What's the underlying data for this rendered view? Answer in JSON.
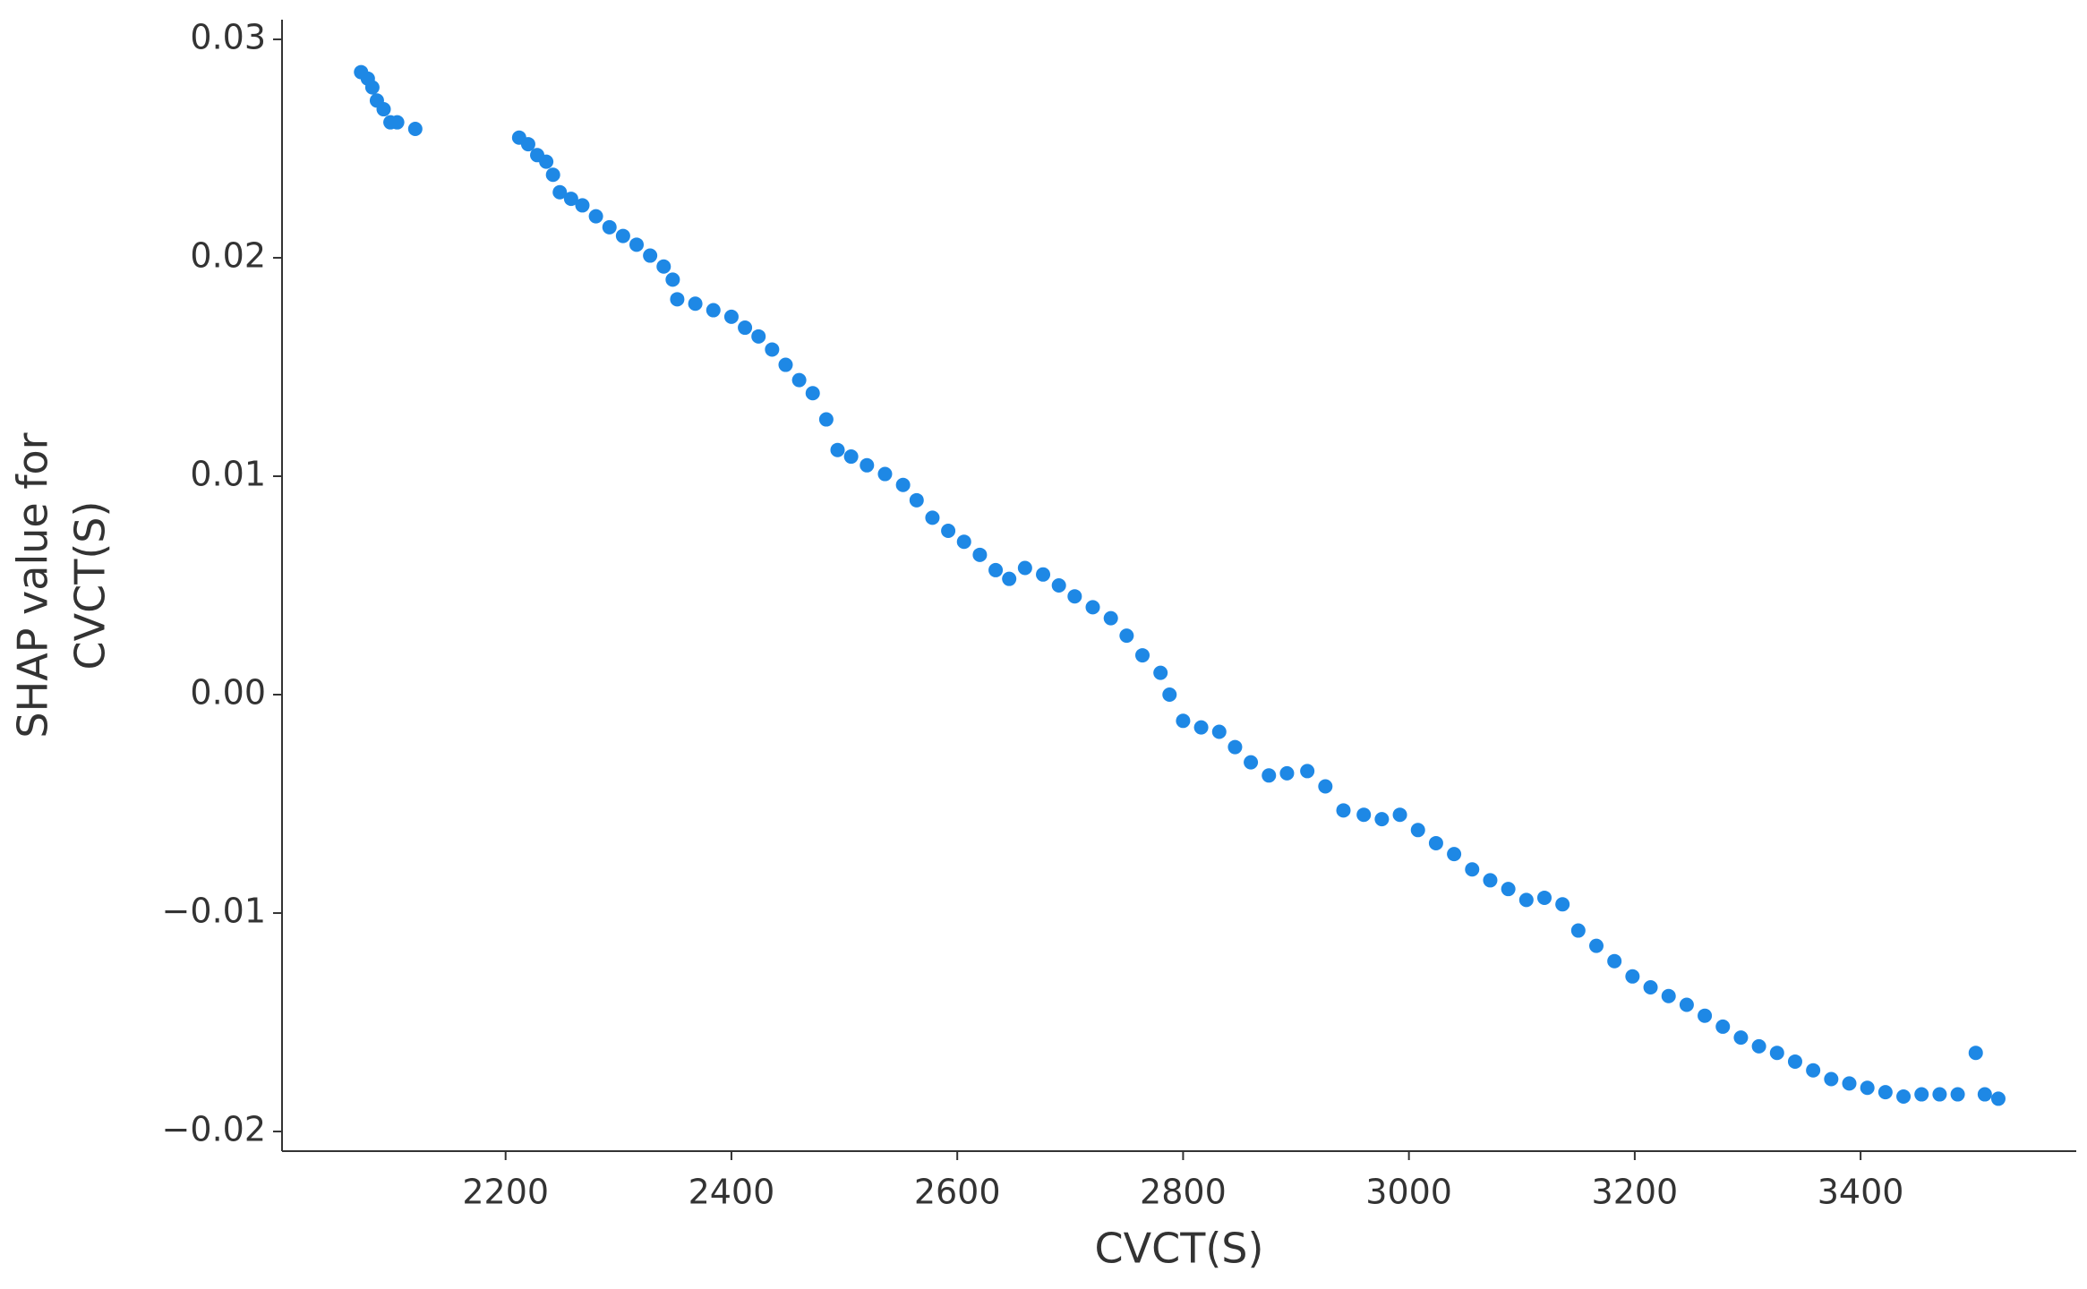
{
  "chart_data": {
    "type": "scatter",
    "xlabel": "CVCT(S)",
    "ylabel": [
      "SHAP value for",
      "CVCT(S)"
    ],
    "color": "#1e88e5",
    "x": [
      2072,
      2078,
      2082,
      2086,
      2092,
      2098,
      2104,
      2120,
      2212,
      2220,
      2228,
      2236,
      2242,
      2248,
      2258,
      2268,
      2280,
      2292,
      2304,
      2316,
      2328,
      2340,
      2348,
      2352,
      2368,
      2384,
      2400,
      2412,
      2424,
      2436,
      2448,
      2460,
      2472,
      2484,
      2494,
      2506,
      2520,
      2536,
      2552,
      2564,
      2578,
      2592,
      2606,
      2620,
      2634,
      2646,
      2660,
      2676,
      2690,
      2704,
      2720,
      2736,
      2750,
      2764,
      2780,
      2788,
      2800,
      2816,
      2832,
      2846,
      2860,
      2876,
      2892,
      2910,
      2926,
      2942,
      2960,
      2976,
      2992,
      3008,
      3024,
      3040,
      3056,
      3072,
      3088,
      3104,
      3120,
      3136,
      3150,
      3166,
      3182,
      3198,
      3214,
      3230,
      3246,
      3262,
      3278,
      3294,
      3310,
      3326,
      3342,
      3358,
      3374,
      3390,
      3406,
      3422,
      3438,
      3454,
      3470,
      3486,
      3502,
      3510,
      3522
    ],
    "values": [
      0.0285,
      0.0282,
      0.0278,
      0.0272,
      0.0268,
      0.0262,
      0.0262,
      0.0259,
      0.0255,
      0.0252,
      0.0247,
      0.0244,
      0.0238,
      0.023,
      0.0227,
      0.0224,
      0.0219,
      0.0214,
      0.021,
      0.0206,
      0.0201,
      0.0196,
      0.019,
      0.0181,
      0.0179,
      0.0176,
      0.0173,
      0.0168,
      0.0164,
      0.0158,
      0.0151,
      0.0144,
      0.0138,
      0.0126,
      0.0112,
      0.0109,
      0.0105,
      0.0101,
      0.0096,
      0.0089,
      0.0081,
      0.0075,
      0.007,
      0.0064,
      0.0057,
      0.0053,
      0.0058,
      0.0055,
      0.005,
      0.0045,
      0.004,
      0.0035,
      0.0027,
      0.0018,
      0.001,
      0.0,
      -0.0012,
      -0.0015,
      -0.0017,
      -0.0024,
      -0.0031,
      -0.0037,
      -0.0036,
      -0.0035,
      -0.0042,
      -0.0053,
      -0.0055,
      -0.0057,
      -0.0055,
      -0.0062,
      -0.0068,
      -0.0073,
      -0.008,
      -0.0085,
      -0.0089,
      -0.0094,
      -0.0093,
      -0.0096,
      -0.0108,
      -0.0115,
      -0.0122,
      -0.0129,
      -0.0134,
      -0.0138,
      -0.0142,
      -0.0147,
      -0.0152,
      -0.0157,
      -0.0161,
      -0.0164,
      -0.0168,
      -0.0172,
      -0.0176,
      -0.0178,
      -0.018,
      -0.0182,
      -0.0184,
      -0.0183,
      -0.0183,
      -0.0183,
      -0.0164,
      -0.0183,
      -0.0185
    ],
    "xlim": [
      2002,
      3591
    ],
    "xticks": [
      2200,
      2400,
      2600,
      2800,
      3000,
      3200,
      3400
    ],
    "ylim": [
      -0.0209,
      0.0309
    ],
    "yticks": [
      {
        "value": -0.02,
        "label": "−0.02"
      },
      {
        "value": -0.01,
        "label": "−0.01"
      },
      {
        "value": 0,
        "label": "0.00"
      },
      0.01,
      0.02,
      0.03
    ]
  }
}
